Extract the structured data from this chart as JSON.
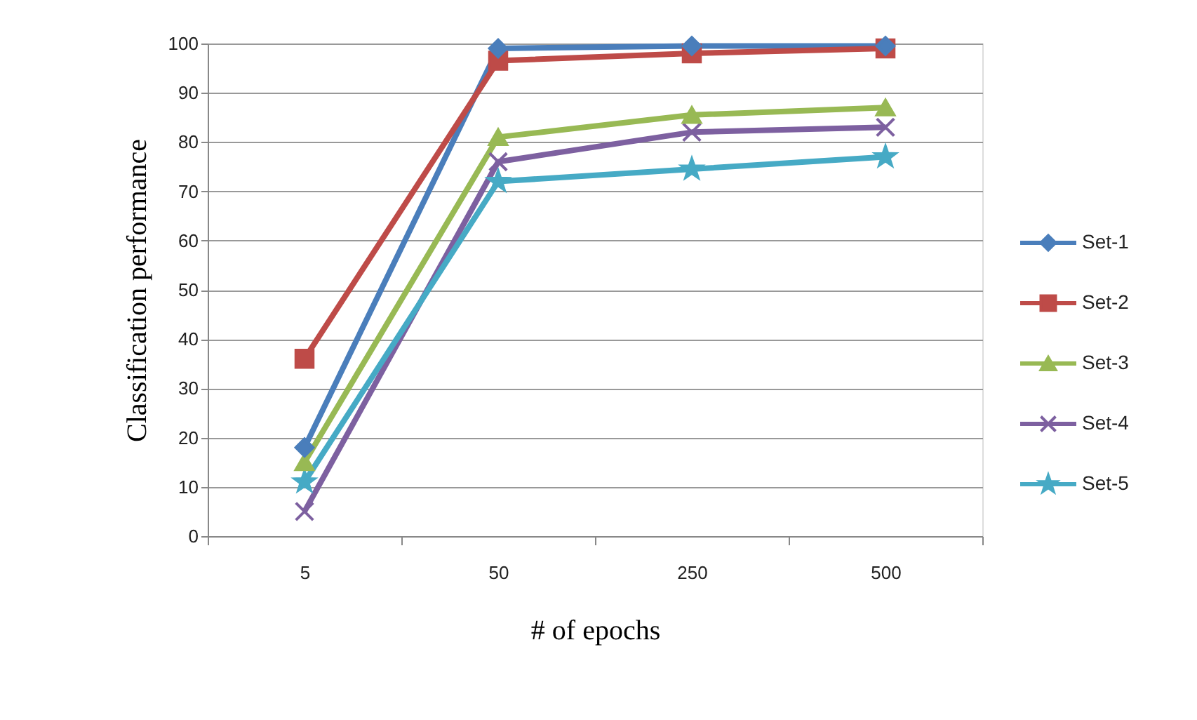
{
  "chart_data": {
    "type": "line",
    "xlabel": "# of epochs",
    "ylabel": "Classification performance",
    "categories": [
      "5",
      "50",
      "250",
      "500"
    ],
    "series": [
      {
        "name": "Set-1",
        "color": "#4a7ebb",
        "marker": "diamond",
        "values": [
          18,
          99,
          99.5,
          99.5
        ]
      },
      {
        "name": "Set-2",
        "color": "#be4b48",
        "marker": "square",
        "values": [
          36,
          96.5,
          98,
          99
        ]
      },
      {
        "name": "Set-3",
        "color": "#98b954",
        "marker": "triangle",
        "values": [
          15,
          81,
          85.5,
          87
        ]
      },
      {
        "name": "Set-4",
        "color": "#7d60a0",
        "marker": "cross",
        "values": [
          5,
          76,
          82,
          83
        ]
      },
      {
        "name": "Set-5",
        "color": "#46aac5",
        "marker": "star",
        "values": [
          11,
          72,
          74.5,
          77
        ]
      }
    ],
    "ylim": [
      0,
      100
    ],
    "yticks": [
      0,
      10,
      20,
      30,
      40,
      50,
      60,
      70,
      80,
      90,
      100
    ],
    "grid": "y",
    "legend": "right"
  }
}
